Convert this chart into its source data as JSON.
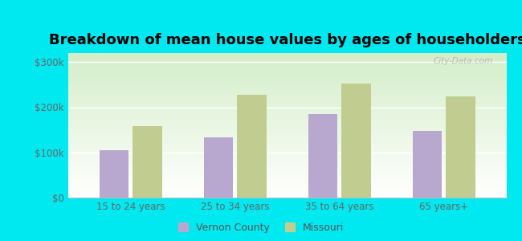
{
  "title": "Breakdown of mean house values by ages of householders",
  "categories": [
    "15 to 24 years",
    "25 to 34 years",
    "35 to 64 years",
    "65 years+"
  ],
  "vernon_county": [
    105000,
    133000,
    185000,
    148000
  ],
  "missouri": [
    158000,
    228000,
    252000,
    224000
  ],
  "bar_color_vernon": "#b8a8d0",
  "bar_color_missouri": "#c0cc90",
  "legend_label_vernon": "Vernon County",
  "legend_label_missouri": "Missouri",
  "ylim": [
    0,
    320000
  ],
  "yticks": [
    0,
    100000,
    200000,
    300000
  ],
  "ytick_labels": [
    "$0",
    "$100k",
    "$200k",
    "$300k"
  ],
  "outer_background": "#00e8f0",
  "title_fontsize": 13,
  "watermark": "City-Data.com"
}
